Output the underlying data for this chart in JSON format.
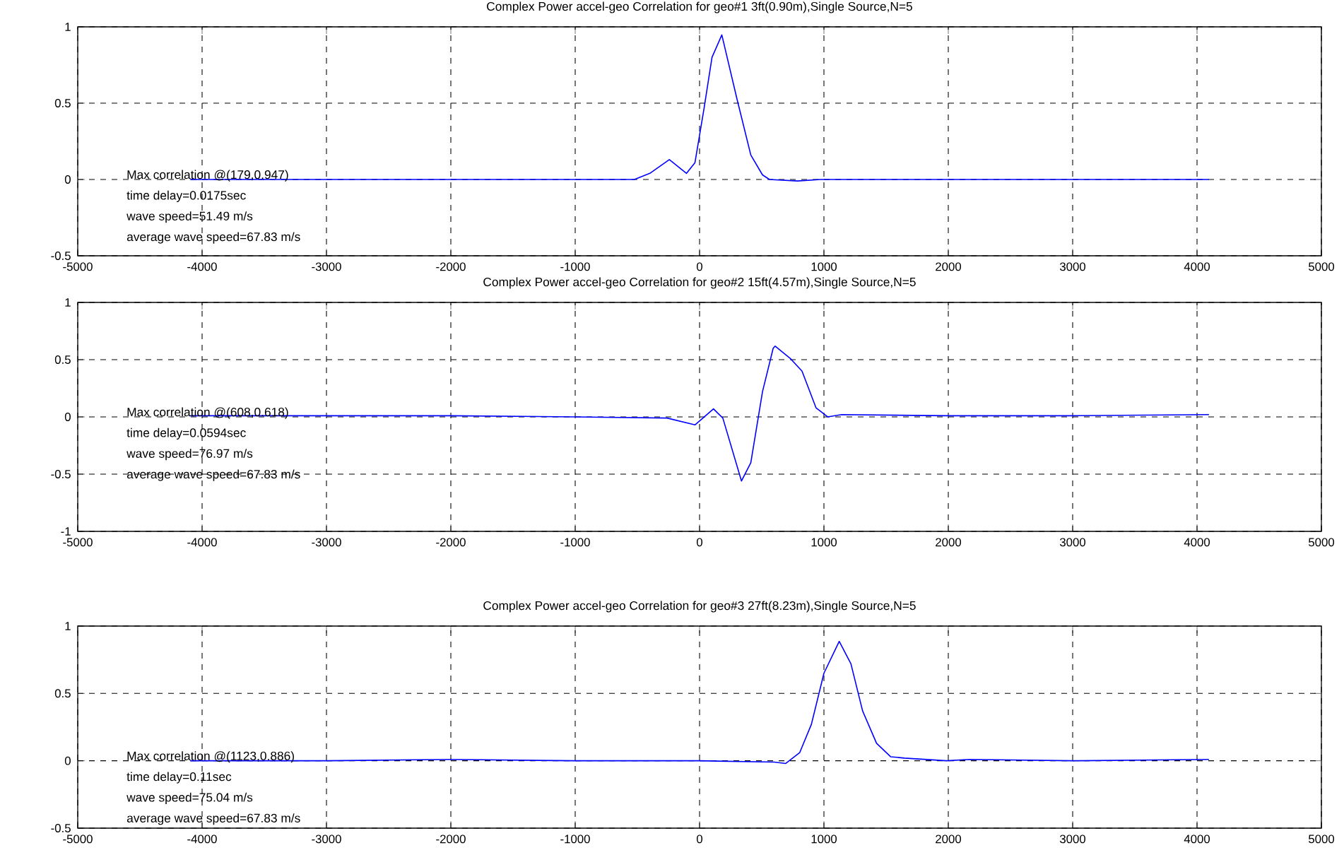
{
  "chart_data": [
    {
      "type": "line",
      "title": "Complex Power accel-geo Correlation for geo#1 3ft(0.90m),Single Source,N=5",
      "series": [
        {
          "color": "#0000ff",
          "x": [
            -4096,
            -2000,
            -1000,
            -524,
            -400,
            -243,
            -105,
            -37,
            37,
            100,
            179,
            300,
            412,
            506,
            562,
            787,
            974,
            2000,
            3000,
            4096
          ],
          "values": [
            0,
            0,
            0,
            0,
            0.04,
            0.13,
            0.04,
            0.11,
            0.47,
            0.8,
            0.947,
            0.53,
            0.16,
            0.03,
            0,
            -0.01,
            0,
            0,
            0,
            0
          ]
        }
      ],
      "xlim": [
        -5000,
        5000
      ],
      "ylim": [
        -0.5,
        1
      ],
      "xticks": [
        -5000,
        -4000,
        -3000,
        -2000,
        -1000,
        0,
        1000,
        2000,
        3000,
        4000,
        5000
      ],
      "yticks": [
        -0.5,
        0,
        0.5,
        1
      ],
      "grid": true,
      "annotations": [
        "Max correlation @(179,0.947)",
        "time delay=0.0175sec",
        "wave speed=51.49 m/s",
        "average wave speed=67.83 m/s"
      ]
    },
    {
      "type": "line",
      "title": "Complex Power accel-geo Correlation for geo#2 15ft(4.57m),Single Source,N=5",
      "series": [
        {
          "color": "#0000ff",
          "x": [
            -4096,
            -3000,
            -2000,
            -1000,
            -262,
            -37,
            112,
            187,
            337,
            412,
            506,
            592,
            608,
            730,
            824,
            936,
            1030,
            1142,
            2000,
            3000,
            4096
          ],
          "values": [
            0.01,
            0.01,
            0.01,
            0.0,
            -0.01,
            -0.07,
            0.07,
            -0.01,
            -0.56,
            -0.4,
            0.22,
            0.6,
            0.618,
            0.51,
            0.4,
            0.08,
            0,
            0.02,
            0.01,
            0.01,
            0.02
          ]
        }
      ],
      "xlim": [
        -5000,
        5000
      ],
      "ylim": [
        -1,
        1
      ],
      "xticks": [
        -5000,
        -4000,
        -3000,
        -2000,
        -1000,
        0,
        1000,
        2000,
        3000,
        4000,
        5000
      ],
      "yticks": [
        -1,
        -0.5,
        0,
        0.5,
        1
      ],
      "grid": true,
      "annotations": [
        "Max correlation @(608,0.618)",
        "time delay=0.0594sec",
        "wave speed=76.97 m/s",
        "average wave speed=67.83 m/s"
      ]
    },
    {
      "type": "line",
      "title": "Complex Power accel-geo Correlation for geo#3 27ft(8.23m),Single Source,N=5",
      "series": [
        {
          "color": "#0000ff",
          "x": [
            -4096,
            -3000,
            -2000,
            -1000,
            0,
            600,
            693,
            805,
            899,
            1000,
            1123,
            1217,
            1311,
            1423,
            1536,
            1648,
            1985,
            2172,
            3000,
            4096
          ],
          "values": [
            0,
            0,
            0.01,
            0,
            0,
            -0.01,
            -0.02,
            0.06,
            0.27,
            0.65,
            0.886,
            0.72,
            0.37,
            0.13,
            0.03,
            0.02,
            0,
            0.01,
            0,
            0.01
          ]
        }
      ],
      "xlim": [
        -5000,
        5000
      ],
      "ylim": [
        -0.5,
        1
      ],
      "xticks": [
        -5000,
        -4000,
        -3000,
        -2000,
        -1000,
        0,
        1000,
        2000,
        3000,
        4000,
        5000
      ],
      "yticks": [
        -0.5,
        0,
        0.5,
        1
      ],
      "grid": true,
      "annotations": [
        "Max correlation @(1123,0.886)",
        "time delay=0.11sec",
        "wave speed=75.04 m/s",
        "average wave speed=67.83 m/s"
      ]
    }
  ]
}
